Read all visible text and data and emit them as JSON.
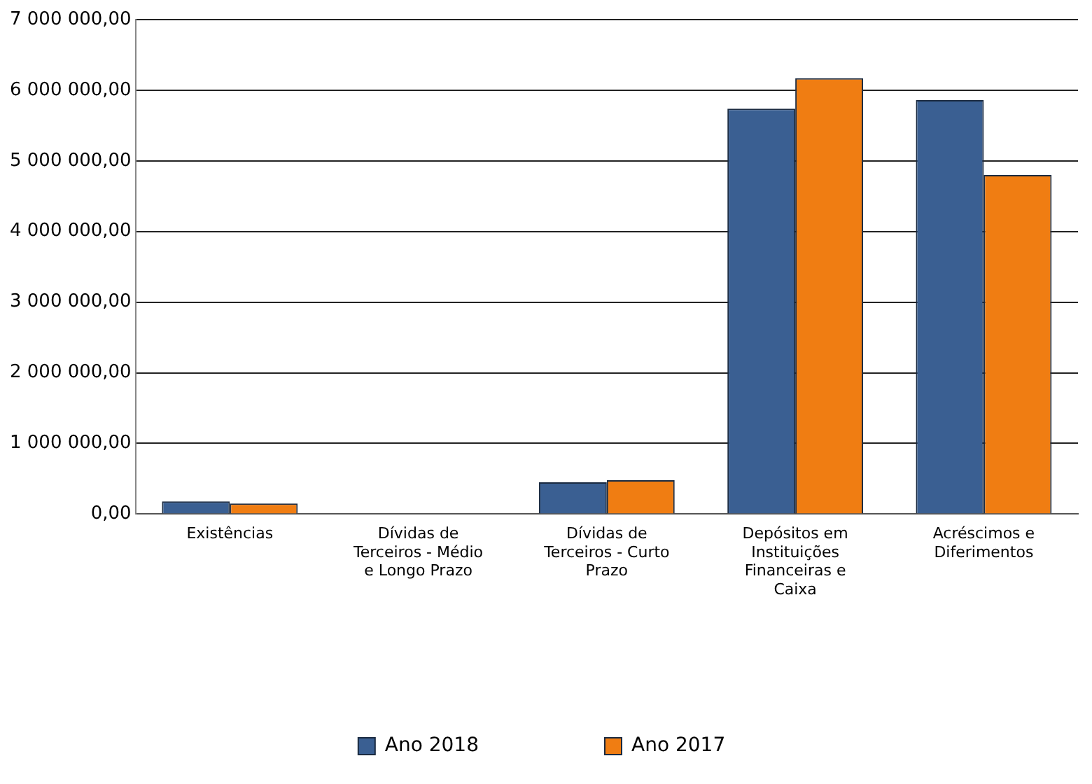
{
  "chart_data": {
    "type": "bar",
    "categories": [
      "Existências",
      "Dívidas de Terceiros - Médio e Longo Prazo",
      "Dívidas de Terceiros - Curto Prazo",
      "Depósitos em Instituições Financeiras e Caixa",
      "Acréscimos e Diferimentos"
    ],
    "series": [
      {
        "name": "Ano 2018",
        "color": "#3a5f92",
        "values": [
          180000,
          0,
          450000,
          5740000,
          5860000
        ]
      },
      {
        "name": "Ano 2017",
        "color": "#f07d12",
        "values": [
          150000,
          0,
          480000,
          6170000,
          4800000
        ]
      }
    ],
    "ylim": [
      0,
      7000000
    ],
    "yticks": [
      {
        "value": 0,
        "label": "0,00"
      },
      {
        "value": 1000000,
        "label": "1 000 000,00"
      },
      {
        "value": 2000000,
        "label": "2 000 000,00"
      },
      {
        "value": 3000000,
        "label": "3 000 000,00"
      },
      {
        "value": 4000000,
        "label": "4 000 000,00"
      },
      {
        "value": 5000000,
        "label": "5 000 000,00"
      },
      {
        "value": 6000000,
        "label": "6 000 000,00"
      },
      {
        "value": 7000000,
        "label": "7 000 000,00"
      }
    ],
    "grid": "y",
    "legend": "bottom"
  }
}
